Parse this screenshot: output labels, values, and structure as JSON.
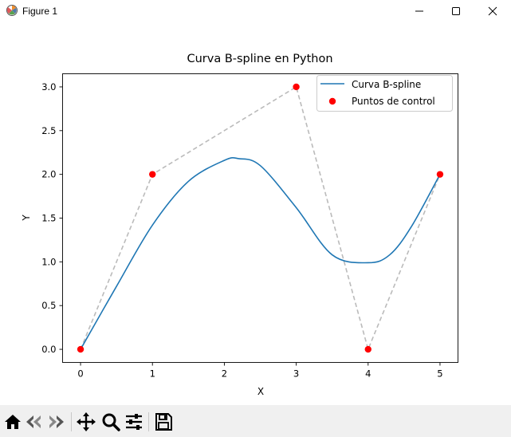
{
  "window": {
    "title": "Figure 1",
    "icon": "matplotlib-icon",
    "controls": [
      "minimize",
      "maximize",
      "close"
    ]
  },
  "chart_data": {
    "type": "line",
    "title": "Curva B-spline en Python",
    "xlabel": "X",
    "ylabel": "Y",
    "xlim": [
      -0.25,
      5.25
    ],
    "ylim": [
      -0.15,
      3.15
    ],
    "xticks": [
      "0",
      "1",
      "2",
      "3",
      "4",
      "5"
    ],
    "yticks": [
      "0.0",
      "0.5",
      "1.0",
      "1.5",
      "2.0",
      "2.5",
      "3.0"
    ],
    "grid": false,
    "legend_position": "top-right",
    "series": [
      {
        "name": "Curva B-spline",
        "type": "line",
        "color": "#1f77b4",
        "x": [
          0,
          0.5,
          1,
          1.5,
          2,
          2.2,
          2.5,
          3,
          3.5,
          4,
          4.3,
          4.6,
          5
        ],
        "y": [
          0,
          0.72,
          1.42,
          1.92,
          2.16,
          2.18,
          2.1,
          1.62,
          1.08,
          0.99,
          1.08,
          1.4,
          2.0
        ]
      },
      {
        "name": "",
        "type": "line",
        "style": "dashed",
        "color": "#bbbbbb",
        "x": [
          0,
          1,
          3,
          4,
          5
        ],
        "y": [
          0,
          2,
          3,
          0,
          2
        ]
      },
      {
        "name": "Puntos de control",
        "type": "scatter",
        "color": "#ff0000",
        "x": [
          0,
          1,
          3,
          4,
          5
        ],
        "y": [
          0,
          2,
          3,
          0,
          2
        ]
      }
    ]
  },
  "toolbar": {
    "buttons": [
      "home-icon",
      "back-icon",
      "forward-icon",
      "pan-icon",
      "zoom-icon",
      "configure-subplots-icon",
      "save-icon"
    ]
  }
}
